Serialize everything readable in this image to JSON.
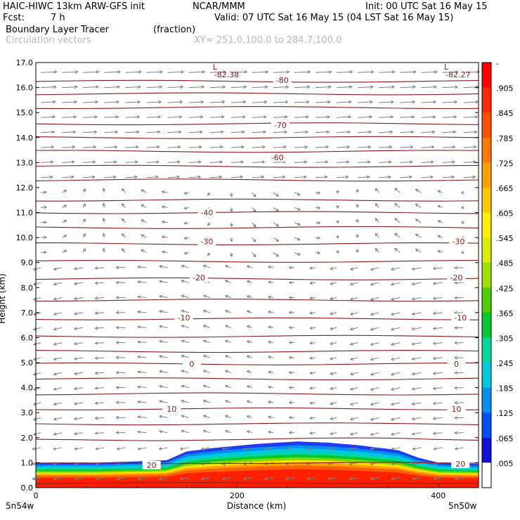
{
  "header": {
    "model": "HAIC-HIWC 13km ARW-GFS init",
    "org": "NCAR/MMM",
    "init": "Init: 00 UTC Sat 16 May 15",
    "fcst_label": "Fcst:",
    "fcst_value": "7 h",
    "valid": "Valid: 07 UTC Sat 16 May 15 (04 LST Sat 16 May 15)",
    "field": "Boundary Layer Tracer",
    "field_units": "(fraction)",
    "vectors": "Circulation vectors",
    "xy": "XY= 251.0,100.0 to 284.7,100.0"
  },
  "colors": {
    "contour": "#8b1a1a",
    "vector": "#7f7f7f",
    "frame": "#000000"
  },
  "chart_data": {
    "type": "heatmap",
    "title": "Boundary Layer Tracer",
    "xlabel": "Distance (km)",
    "ylabel": "Height (km)",
    "xlim": [
      0,
      440
    ],
    "ylim": [
      0,
      17
    ],
    "x_ticks": [
      0,
      200,
      400
    ],
    "x_tick_labels": [
      "0",
      "200",
      "400"
    ],
    "y_ticks": [
      0,
      1,
      2,
      3,
      4,
      5,
      6,
      7,
      8,
      9,
      10,
      11,
      12,
      13,
      14,
      15,
      16,
      17
    ],
    "y_tick_labels": [
      "0.0",
      "1.0",
      "2.0",
      "3.0",
      "4.0",
      "5.0",
      "6.0",
      "7.0",
      "8.0",
      "9.0",
      "10.0",
      "11.0",
      "12.0",
      "13.0",
      "14.0",
      "15.0",
      "16.0",
      "17.0"
    ],
    "x_end_labels": [
      "5n54w",
      "5n50w"
    ],
    "colorbar": {
      "labels": [
        "-",
        ".905",
        ".845",
        ".785",
        ".725",
        ".665",
        ".605",
        ".545",
        ".485",
        ".425",
        ".365",
        ".305",
        ".245",
        ".185",
        ".125",
        ".065",
        ".005"
      ],
      "colors": [
        "#ff0000",
        "#ff2a00",
        "#ff5000",
        "#ff7800",
        "#ffa000",
        "#ffc800",
        "#ffee00",
        "#d8f000",
        "#a0e000",
        "#50d000",
        "#00c830",
        "#00d8a0",
        "#00c8e0",
        "#0090f0",
        "#0050f0",
        "#1010d8",
        "#ffffff"
      ]
    },
    "tracer_top_km": [
      [
        0,
        1.0
      ],
      [
        60,
        1.0
      ],
      [
        100,
        1.05
      ],
      [
        130,
        1.1
      ],
      [
        150,
        1.45
      ],
      [
        180,
        1.6
      ],
      [
        220,
        1.75
      ],
      [
        260,
        1.85
      ],
      [
        290,
        1.8
      ],
      [
        320,
        1.7
      ],
      [
        360,
        1.5
      ],
      [
        380,
        1.2
      ],
      [
        400,
        1.0
      ],
      [
        440,
        0.95
      ]
    ],
    "isotherm_labels": [
      {
        "text": "-80",
        "x": 245,
        "y": 16.3
      },
      {
        "text": "-70",
        "x": 243,
        "y": 14.5
      },
      {
        "text": "-60",
        "x": 240,
        "y": 13.2
      },
      {
        "text": "-40",
        "x": 170,
        "y": 11.0
      },
      {
        "text": "-30",
        "x": 170,
        "y": 9.85
      },
      {
        "text": "-30",
        "x": 420,
        "y": 9.85
      },
      {
        "text": "-20",
        "x": 162,
        "y": 8.4
      },
      {
        "text": "-20",
        "x": 418,
        "y": 8.4
      },
      {
        "text": "-10",
        "x": 147,
        "y": 6.8
      },
      {
        "text": "-10",
        "x": 422,
        "y": 6.8
      },
      {
        "text": "0",
        "x": 155,
        "y": 4.95
      },
      {
        "text": "0",
        "x": 418,
        "y": 4.95
      },
      {
        "text": "10",
        "x": 135,
        "y": 3.15
      },
      {
        "text": "10",
        "x": 418,
        "y": 3.15
      },
      {
        "text": "20",
        "x": 115,
        "y": 0.9
      },
      {
        "text": "20",
        "x": 422,
        "y": 0.95
      }
    ],
    "lows": [
      {
        "text": "L",
        "value": "-82.38",
        "x": 180
      },
      {
        "text": "L",
        "value": "-82.27",
        "x": 410
      }
    ]
  }
}
